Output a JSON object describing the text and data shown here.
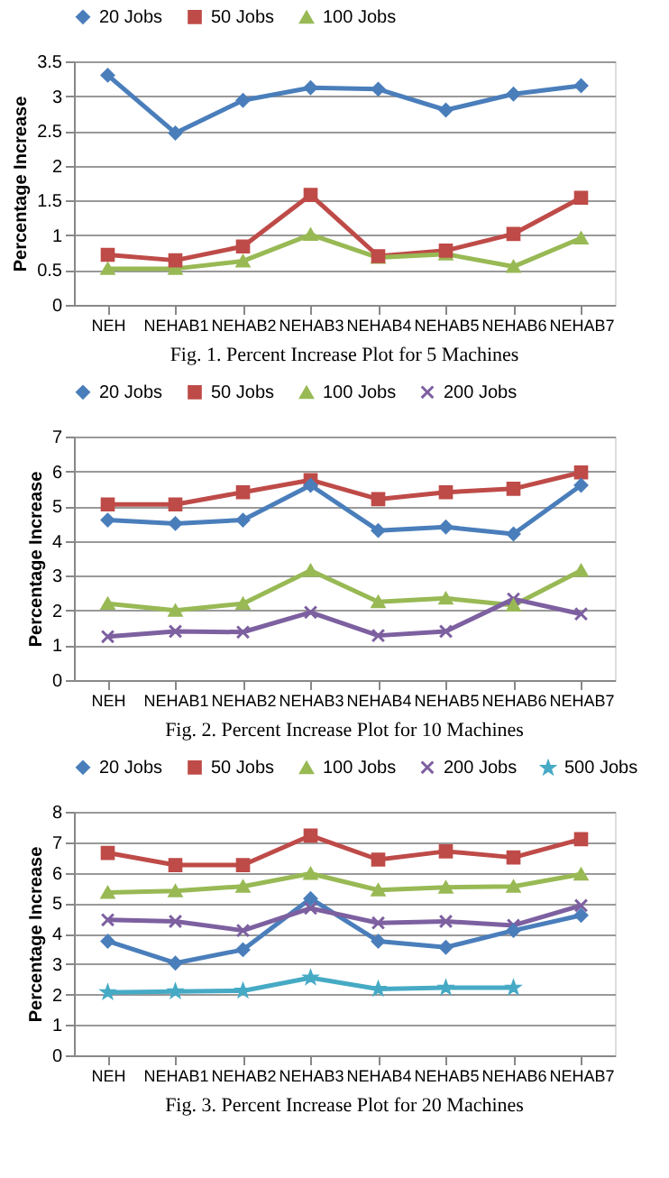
{
  "chart_data": [
    {
      "type": "line",
      "ylabel": "Percentage Increase",
      "categories": [
        "NEH",
        "NEHAB1",
        "NEHAB2",
        "NEHAB3",
        "NEHAB4",
        "NEHAB5",
        "NEHAB6",
        "NEHAB7"
      ],
      "ylim": [
        0,
        3.5
      ],
      "yticks": [
        0,
        0.5,
        1,
        1.5,
        2,
        2.5,
        3,
        3.5
      ],
      "grid": "y",
      "legend": "top",
      "line_style": "solid",
      "annotations": [
        "Fig. 1. Percent Increase Plot for 5 Machines"
      ],
      "series": [
        {
          "name": "20 Jobs",
          "color": "#4a7ebb",
          "marker": "diamond",
          "values": [
            3.3,
            2.47,
            2.94,
            3.12,
            3.1,
            2.8,
            3.03,
            3.15
          ]
        },
        {
          "name": "50 Jobs",
          "color": "#be4b48",
          "marker": "square",
          "values": [
            0.72,
            0.64,
            0.84,
            1.58,
            0.7,
            0.78,
            1.02,
            1.54
          ]
        },
        {
          "name": "100 Jobs",
          "color": "#98b954",
          "marker": "triangle",
          "values": [
            0.52,
            0.52,
            0.63,
            1.01,
            0.68,
            0.73,
            0.55,
            0.96
          ]
        }
      ]
    },
    {
      "type": "line",
      "ylabel": "Percentage Increase",
      "categories": [
        "NEH",
        "NEHAB1",
        "NEHAB2",
        "NEHAB3",
        "NEHAB4",
        "NEHAB5",
        "NEHAB6",
        "NEHAB7"
      ],
      "ylim": [
        0,
        7
      ],
      "yticks": [
        0,
        1,
        2,
        3,
        4,
        5,
        6,
        7
      ],
      "grid": "y",
      "legend": "top",
      "line_style": "solid",
      "annotations": [
        "Fig. 2. Percent Increase Plot for 10 Machines"
      ],
      "series": [
        {
          "name": "20 Jobs",
          "color": "#4a7ebb",
          "marker": "diamond",
          "values": [
            4.6,
            4.5,
            4.6,
            5.6,
            4.3,
            4.4,
            4.2,
            5.6
          ]
        },
        {
          "name": "50 Jobs",
          "color": "#be4b48",
          "marker": "square",
          "values": [
            5.05,
            5.05,
            5.4,
            5.75,
            5.2,
            5.4,
            5.5,
            5.97
          ]
        },
        {
          "name": "100 Jobs",
          "color": "#98b954",
          "marker": "triangle",
          "values": [
            2.2,
            2.0,
            2.2,
            3.15,
            2.25,
            2.35,
            2.15,
            3.15
          ]
        },
        {
          "name": "200 Jobs",
          "color": "#7d60a0",
          "marker": "cross",
          "values": [
            1.25,
            1.4,
            1.38,
            1.95,
            1.28,
            1.4,
            2.33,
            1.9
          ]
        }
      ]
    },
    {
      "type": "line",
      "ylabel": "Percentage Increase",
      "categories": [
        "NEH",
        "NEHAB1",
        "NEHAB2",
        "NEHAB3",
        "NEHAB4",
        "NEHAB5",
        "NEHAB6",
        "NEHAB7"
      ],
      "ylim": [
        0,
        8
      ],
      "yticks": [
        0,
        1,
        2,
        3,
        4,
        5,
        6,
        7,
        8
      ],
      "grid": "y",
      "legend": "top",
      "line_style": "solid",
      "annotations": [
        "Fig. 3. Percent Increase Plot for 20 Machines"
      ],
      "series": [
        {
          "name": "20 Jobs",
          "color": "#4a7ebb",
          "marker": "diamond",
          "values": [
            3.75,
            3.03,
            3.47,
            5.15,
            3.75,
            3.55,
            4.1,
            4.6
          ]
        },
        {
          "name": "50 Jobs",
          "color": "#be4b48",
          "marker": "square",
          "values": [
            6.65,
            6.25,
            6.25,
            7.22,
            6.43,
            6.7,
            6.5,
            7.1
          ]
        },
        {
          "name": "100 Jobs",
          "color": "#98b954",
          "marker": "triangle",
          "values": [
            5.35,
            5.4,
            5.55,
            5.97,
            5.43,
            5.52,
            5.55,
            5.95
          ]
        },
        {
          "name": "200 Jobs",
          "color": "#7d60a0",
          "marker": "cross",
          "values": [
            4.45,
            4.4,
            4.1,
            4.83,
            4.35,
            4.4,
            4.27,
            4.92
          ]
        },
        {
          "name": "500 Jobs",
          "color": "#46aac5",
          "marker": "star",
          "values": [
            2.07,
            2.1,
            2.12,
            2.55,
            2.18,
            2.22,
            2.22,
            null
          ]
        }
      ]
    }
  ]
}
